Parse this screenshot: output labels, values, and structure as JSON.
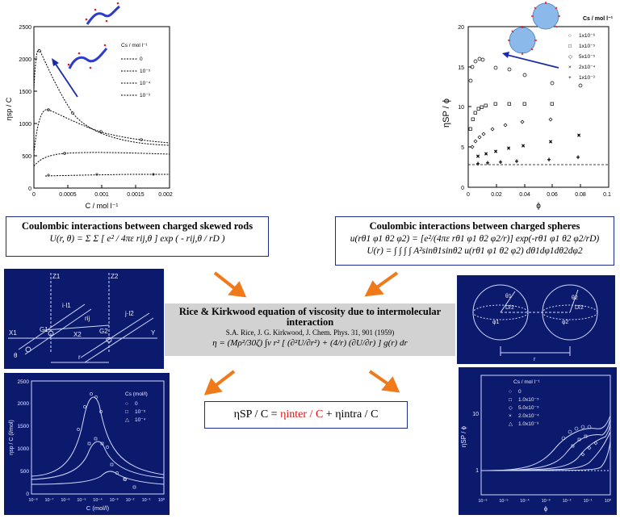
{
  "rods_chart": {
    "ylabel": "ηsp / C",
    "xlabel": "C / mol l⁻¹",
    "yticks": [
      "0",
      "500",
      "1000",
      "1500",
      "2000",
      "2500"
    ],
    "xticks": [
      "0",
      "0.0005",
      "0.001",
      "0.0015",
      "0.002"
    ],
    "legend_title": "Cs / mol l⁻¹",
    "legend": [
      "0",
      "10⁻⁵",
      "10⁻⁴",
      "10⁻³"
    ]
  },
  "spheres_chart": {
    "ylabel": "ηSP / ϕ",
    "xlabel": "ϕ",
    "yticks": [
      "0",
      "5",
      "10",
      "15",
      "20"
    ],
    "xticks": [
      "0",
      "0.02",
      "0.04",
      "0.06",
      "0.08",
      "0.1"
    ],
    "legend_title": "Cs / mol l⁻¹",
    "legend": [
      "1x10⁻⁶",
      "1x10⁻⁵",
      "5x10⁻⁵",
      "2x10⁻⁴",
      "1x10⁻³"
    ],
    "legend_markers": [
      "○",
      "□",
      "◇",
      "×",
      "+"
    ]
  },
  "rods_box": {
    "title": "Coulombic interactions between charged skewed rods",
    "equation": "U(r, θ) = Σ Σ [ e² / 4πε rij,θ ] exp ( - rij,θ / rD )"
  },
  "spheres_box": {
    "title": "Coulombic interactions between charged spheres",
    "equation1": "u(rθ1 φ1 θ2 φ2) = [e²/(4πε rθ1 φ1 θ2 φ2/r)] exp(-rθ1 φ1 θ2 φ2/rD)",
    "equation2": "U(r) = ∫ ∫ ∫ ∫ A²sinθ1sinθ2 u(rθ1 φ1 θ2 φ2) dθ1dφ1dθ2dφ2"
  },
  "rice_kirkwood": {
    "title": "Rice & Kirkwood equation of viscosity due to intermolecular interaction",
    "citation": "S.A. Rice, J. G. Kirkwood, J. Chem. Phys. 31, 901 (1959)",
    "equation": "η = (Mρ²/30ζ) ∫v r² [ (∂²U/∂r²) + (4/r) (∂U/∂r) ] g(r) dr"
  },
  "rod_geometry": {
    "labels": [
      "Z1",
      "Z2",
      "X1",
      "X2",
      "Y",
      "G1",
      "G2",
      "θ",
      "rij",
      "i·l1",
      "j·l2",
      "r"
    ]
  },
  "sphere_geometry": {
    "labels": [
      "θ1",
      "θ2",
      "φ1",
      "φ2",
      "D/2",
      "D/2",
      "r"
    ]
  },
  "rods_calc_chart": {
    "ylabel": "ηsp / C (l/mol)",
    "xlabel": "C (mol/l)",
    "yticks": [
      "0",
      "500",
      "1000",
      "1500",
      "2000",
      "2500"
    ],
    "xticks": [
      "10⁻⁸",
      "10⁻⁷",
      "10⁻⁶",
      "10⁻⁵",
      "10⁻⁴",
      "10⁻³",
      "10⁻²",
      "10⁻¹",
      "10⁰"
    ],
    "legend_title": "Cs (mol/l)",
    "legend": [
      "0",
      "10⁻⁵",
      "10⁻⁴"
    ],
    "legend_markers": [
      "○",
      "□",
      "△"
    ]
  },
  "spheres_calc_chart": {
    "ylabel": "ηSP / ϕ",
    "xlabel": "ϕ",
    "yticks": [
      "1",
      "10"
    ],
    "xticks": [
      "10⁻⁶",
      "10⁻⁵",
      "10⁻⁴",
      "10⁻³",
      "10⁻²",
      "10⁻¹",
      "10⁰"
    ],
    "legend_title": "Cs / mol l⁻¹",
    "legend": [
      "0",
      "1.0x10⁻⁵",
      "5.0x10⁻⁵",
      "2.0x10⁻⁴",
      "1.0x10⁻³"
    ],
    "legend_markers": [
      "○",
      "□",
      "◇",
      "×",
      "△"
    ]
  },
  "sum_equation": {
    "lhs": "ηSP / C = ",
    "inter": "ηinter / C",
    "plus": " + ",
    "intra": "ηintra / C"
  },
  "colors": {
    "arrow": "#f07a1a",
    "accent_blue": "#1b2a8c",
    "dark_panel": "#0c1a6e"
  }
}
